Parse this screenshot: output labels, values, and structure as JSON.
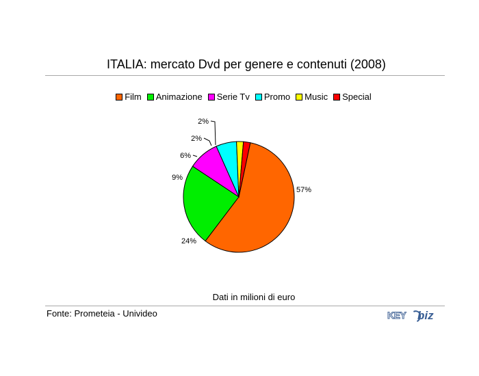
{
  "header": {
    "title": "ITALIA: mercato Dvd per genere e contenuti (2008)"
  },
  "chart_data": {
    "type": "pie",
    "title": "ITALIA: mercato Dvd per genere e contenuti (2008)",
    "categories": [
      "Film",
      "Animazione",
      "Serie Tv",
      "Promo",
      "Music",
      "Special"
    ],
    "values": [
      57,
      24,
      9,
      6,
      2,
      2
    ],
    "value_labels": [
      "57%",
      "24%",
      "9%",
      "6%",
      "2%",
      "2%"
    ],
    "colors": [
      "#ff6600",
      "#00ee00",
      "#ff00ff",
      "#00ffff",
      "#ffff00",
      "#ff0000"
    ],
    "legend_position": "top"
  },
  "footer": {
    "note": "Dati in milioni di euro",
    "source": "Fonte: Prometeia - Univideo"
  },
  "logo": {
    "part1": "KEY",
    "part2": "biz"
  }
}
